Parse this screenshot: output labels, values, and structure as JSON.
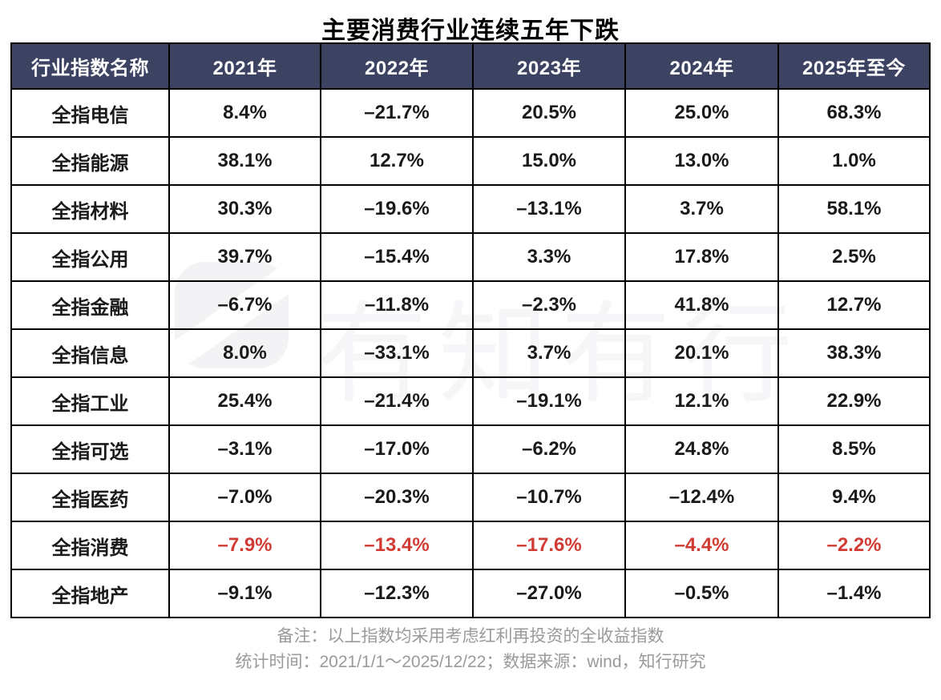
{
  "title": "主要消费行业连续五年下跌",
  "chart_data": {
    "type": "table",
    "title": "主要消费行业连续五年下跌",
    "columns": [
      "行业指数名称",
      "2021年",
      "2022年",
      "2023年",
      "2024年",
      "2025年至今"
    ],
    "rows": [
      {
        "name": "全指电信",
        "values": [
          "8.4%",
          "–21.7%",
          "20.5%",
          "25.0%",
          "68.3%"
        ],
        "highlight": false
      },
      {
        "name": "全指能源",
        "values": [
          "38.1%",
          "12.7%",
          "15.0%",
          "13.0%",
          "1.0%"
        ],
        "highlight": false
      },
      {
        "name": "全指材料",
        "values": [
          "30.3%",
          "–19.6%",
          "–13.1%",
          "3.7%",
          "58.1%"
        ],
        "highlight": false
      },
      {
        "name": "全指公用",
        "values": [
          "39.7%",
          "–15.4%",
          "3.3%",
          "17.8%",
          "2.5%"
        ],
        "highlight": false
      },
      {
        "name": "全指金融",
        "values": [
          "–6.7%",
          "–11.8%",
          "–2.3%",
          "41.8%",
          "12.7%"
        ],
        "highlight": false
      },
      {
        "name": "全指信息",
        "values": [
          "8.0%",
          "–33.1%",
          "3.7%",
          "20.1%",
          "38.3%"
        ],
        "highlight": false
      },
      {
        "name": "全指工业",
        "values": [
          "25.4%",
          "–21.4%",
          "–19.1%",
          "12.1%",
          "22.9%"
        ],
        "highlight": false
      },
      {
        "name": "全指可选",
        "values": [
          "–3.1%",
          "–17.0%",
          "–6.2%",
          "24.8%",
          "8.5%"
        ],
        "highlight": false
      },
      {
        "name": "全指医药",
        "values": [
          "–7.0%",
          "–20.3%",
          "–10.7%",
          "–12.4%",
          "9.4%"
        ],
        "highlight": false
      },
      {
        "name": "全指消费",
        "values": [
          "–7.9%",
          "–13.4%",
          "–17.6%",
          "–4.4%",
          "–2.2%"
        ],
        "highlight": true
      },
      {
        "name": "全指地产",
        "values": [
          "–9.1%",
          "–12.3%",
          "–27.0%",
          "–0.5%",
          "–1.4%"
        ],
        "highlight": false
      }
    ],
    "legend_position": "none",
    "grid": "all-borders"
  },
  "watermark": {
    "text": "有知有行"
  },
  "footer": {
    "line1": "备注：以上指数均采用考虑红利再投资的全收益指数",
    "line2": "统计时间：2021/1/1～2025/12/22；数据来源：wind，知行研究"
  },
  "colors": {
    "header_bg": "#3b4262",
    "header_text": "#ffffff",
    "body_text": "#1a1a1a",
    "highlight_red": "#d23b33",
    "border": "#000000",
    "footer_text": "#9a9a9a",
    "watermark": "#f3f3f5",
    "watermark_text": "#f6f6f8"
  }
}
